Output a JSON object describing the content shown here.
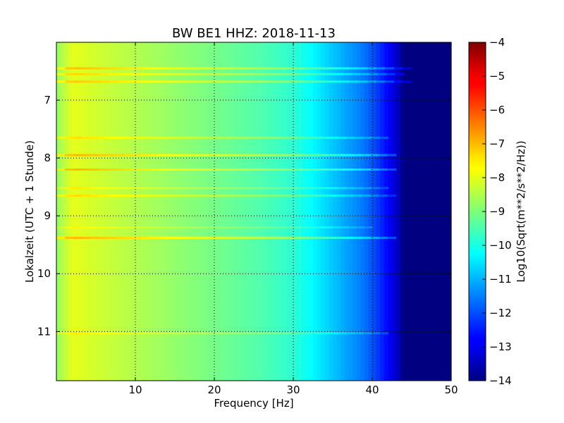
{
  "chart_data": {
    "type": "heatmap",
    "title": "BW BE1 HHZ: 2018-11-13",
    "xlabel": "Frequency [Hz]",
    "ylabel": "Lokalzeit (UTC + 1 Stunde)",
    "colorbar_label": "Log10(Sqrt(m**2/s**2/Hz))",
    "colormap": "jet",
    "x_range": [
      0,
      50
    ],
    "y_range": [
      6.0,
      11.85
    ],
    "y_inverted": true,
    "color_range": [
      -14,
      -4
    ],
    "x_ticks": [
      10,
      20,
      30,
      40,
      50
    ],
    "y_ticks": [
      7,
      8,
      9,
      10,
      11
    ],
    "colorbar_ticks": [
      -4,
      -5,
      -6,
      -7,
      -8,
      -9,
      -10,
      -11,
      -12,
      -13,
      -14
    ],
    "grid": true,
    "grid_style": "dotted",
    "spectrum_profile": [
      {
        "freq": 0,
        "value": -8.8
      },
      {
        "freq": 2,
        "value": -8.0
      },
      {
        "freq": 5,
        "value": -8.2
      },
      {
        "freq": 10,
        "value": -8.5
      },
      {
        "freq": 15,
        "value": -8.8
      },
      {
        "freq": 20,
        "value": -9.1
      },
      {
        "freq": 25,
        "value": -9.4
      },
      {
        "freq": 30,
        "value": -9.8
      },
      {
        "freq": 33,
        "value": -10.4
      },
      {
        "freq": 36,
        "value": -11.0
      },
      {
        "freq": 39,
        "value": -11.6
      },
      {
        "freq": 41,
        "value": -12.3
      },
      {
        "freq": 43,
        "value": -13.2
      },
      {
        "freq": 44,
        "value": -14.0
      },
      {
        "freq": 50,
        "value": -14.0
      }
    ],
    "bright_bands": [
      {
        "time": 6.45,
        "boost": 0.9,
        "max_freq": 45
      },
      {
        "time": 6.55,
        "boost": 0.7,
        "max_freq": 44
      },
      {
        "time": 6.68,
        "boost": 0.8,
        "max_freq": 45
      },
      {
        "time": 7.65,
        "boost": 0.6,
        "max_freq": 42
      },
      {
        "time": 7.95,
        "boost": 1.0,
        "max_freq": 43
      },
      {
        "time": 8.2,
        "boost": 1.0,
        "max_freq": 43
      },
      {
        "time": 8.52,
        "boost": 0.5,
        "max_freq": 42
      },
      {
        "time": 8.65,
        "boost": 0.6,
        "max_freq": 43
      },
      {
        "time": 9.2,
        "boost": 0.4,
        "max_freq": 40
      },
      {
        "time": 9.38,
        "boost": 1.0,
        "max_freq": 43
      },
      {
        "time": 11.03,
        "boost": 0.5,
        "max_freq": 42
      }
    ]
  }
}
